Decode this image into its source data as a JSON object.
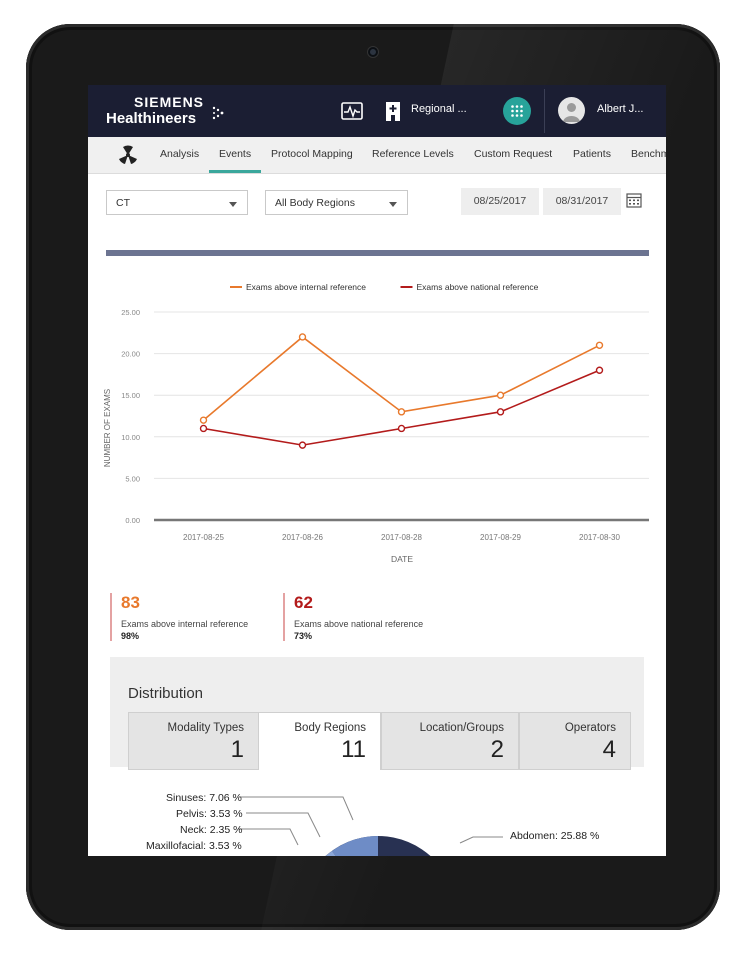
{
  "header": {
    "brand_top": "SIEMENS",
    "brand_bottom": "Healthineers",
    "region_label": "Regional ...",
    "user_name": "Albert J..."
  },
  "nav": {
    "items": [
      "Analysis",
      "Events",
      "Protocol Mapping",
      "Reference Levels",
      "Custom Request",
      "Patients",
      "Benchm"
    ],
    "active": "Events"
  },
  "filters": {
    "modality": "CT",
    "body_region": "All Body Regions",
    "date_from": "08/25/2017",
    "date_to": "08/31/2017"
  },
  "chart_data": {
    "type": "line",
    "x": [
      "2017-08-25",
      "2017-08-26",
      "2017-08-28",
      "2017-08-29",
      "2017-08-30"
    ],
    "series": [
      {
        "name": "Exams above internal reference",
        "color": "#e8792c",
        "values": [
          12,
          22,
          13,
          15,
          21
        ]
      },
      {
        "name": "Exams above national reference",
        "color": "#b31b1b",
        "values": [
          11,
          9,
          11,
          13,
          18
        ]
      }
    ],
    "xlabel": "DATE",
    "ylabel": "NUMBER OF EXAMS",
    "ylim": [
      0,
      25
    ],
    "yticks": [
      "0.00",
      "5.00",
      "10.00",
      "15.00",
      "20.00",
      "25.00"
    ],
    "grid": true,
    "legend": "top-center"
  },
  "kpis": [
    {
      "value": "83",
      "label": "Exams above internal reference",
      "pct": "98%",
      "color": "#e8792c"
    },
    {
      "value": "62",
      "label": "Exams above national reference",
      "pct": "73%",
      "color": "#b31b1b"
    }
  ],
  "distribution": {
    "title": "Distribution",
    "tabs": [
      {
        "label": "Modality Types",
        "count": "1"
      },
      {
        "label": "Body Regions",
        "count": "11"
      },
      {
        "label": "Location/Groups",
        "count": "2"
      },
      {
        "label": "Operators",
        "count": "4"
      }
    ],
    "active_tab": "Body Regions",
    "pie_labels": [
      {
        "text": "Sinuses: 7.06 %"
      },
      {
        "text": "Pelvis: 3.53 %"
      },
      {
        "text": "Neck: 2.35 %"
      },
      {
        "text": "Maxillofacial: 3.53 %"
      },
      {
        "text": "Abdomen: 25.88 %"
      }
    ]
  },
  "colors": {
    "header_bg": "#1b1e33",
    "accent_teal": "#27a39a",
    "internal_orange": "#e8792c",
    "national_red": "#b31b1b"
  }
}
